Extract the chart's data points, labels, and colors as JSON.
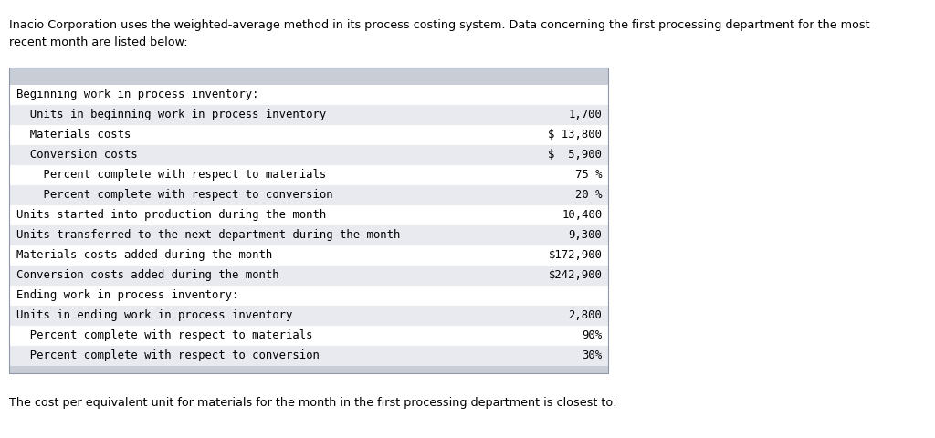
{
  "intro_text_line1": "Inacio Corporation uses the weighted-average method in its process costing system. Data concerning the first processing department for the most",
  "intro_text_line2": "recent month are listed below:",
  "question_text": "The cost per equivalent unit for materials for the month in the first processing department is closest to:",
  "table_rows": [
    {
      "label": "Beginning work in process inventory:",
      "value": "",
      "indent": 0,
      "shaded": false
    },
    {
      "label": "  Units in beginning work in process inventory",
      "value": "1,700",
      "indent": 0,
      "shaded": true
    },
    {
      "label": "  Materials costs",
      "value": "$ 13,800",
      "indent": 0,
      "shaded": false
    },
    {
      "label": "  Conversion costs",
      "value": "$  5,900",
      "indent": 0,
      "shaded": true
    },
    {
      "label": "    Percent complete with respect to materials",
      "value": "75 %",
      "indent": 0,
      "shaded": false
    },
    {
      "label": "    Percent complete with respect to conversion",
      "value": "20 %",
      "indent": 0,
      "shaded": true
    },
    {
      "label": "Units started into production during the month",
      "value": "10,400",
      "indent": 0,
      "shaded": false
    },
    {
      "label": "Units transferred to the next department during the month",
      "value": "9,300",
      "indent": 0,
      "shaded": true
    },
    {
      "label": "Materials costs added during the month",
      "value": "$172,900",
      "indent": 0,
      "shaded": false
    },
    {
      "label": "Conversion costs added during the month",
      "value": "$242,900",
      "indent": 0,
      "shaded": true
    },
    {
      "label": "Ending work in process inventory:",
      "value": "",
      "indent": 0,
      "shaded": false
    },
    {
      "label": "Units in ending work in process inventory",
      "value": "2,800",
      "indent": 0,
      "shaded": true
    },
    {
      "label": "  Percent complete with respect to materials",
      "value": "90%",
      "indent": 0,
      "shaded": false
    },
    {
      "label": "  Percent complete with respect to conversion",
      "value": "30%",
      "indent": 0,
      "shaded": true
    }
  ],
  "bg_color": "#ffffff",
  "header_bar_color": "#c8cdd6",
  "footer_bar_color": "#c8cdd6",
  "shaded_row_color": "#e8eaf0",
  "font_size_intro": 9.2,
  "font_size_table": 8.8,
  "font_size_question": 9.2
}
